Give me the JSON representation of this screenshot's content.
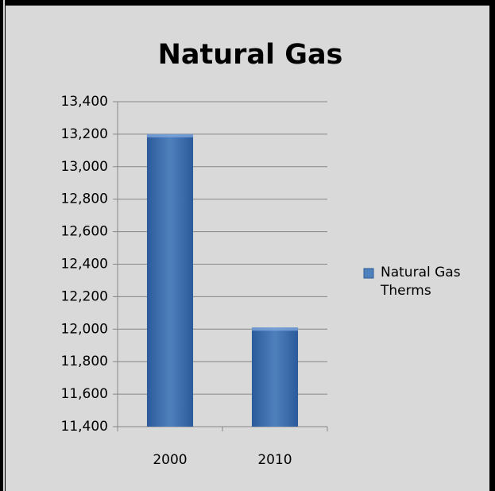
{
  "chart_data": {
    "type": "bar",
    "title": "Natural Gas",
    "categories": [
      "2000",
      "2010"
    ],
    "series": [
      {
        "name": "Natural Gas Therms",
        "color": "#4f81bd",
        "values": [
          13200,
          12010
        ]
      }
    ],
    "ylim": [
      11400,
      13400
    ],
    "yticks": [
      {
        "value": 11400,
        "label": "11,400"
      },
      {
        "value": 11600,
        "label": "11,600"
      },
      {
        "value": 11800,
        "label": "11,800"
      },
      {
        "value": 12000,
        "label": "12,000"
      },
      {
        "value": 12200,
        "label": "12,200"
      },
      {
        "value": 12400,
        "label": "12,400"
      },
      {
        "value": 12600,
        "label": "12,600"
      },
      {
        "value": 12800,
        "label": "12,800"
      },
      {
        "value": 13000,
        "label": "13,000"
      },
      {
        "value": 13200,
        "label": "13,200"
      },
      {
        "value": 13400,
        "label": "13,400"
      }
    ],
    "grid": true,
    "legend": "right"
  }
}
